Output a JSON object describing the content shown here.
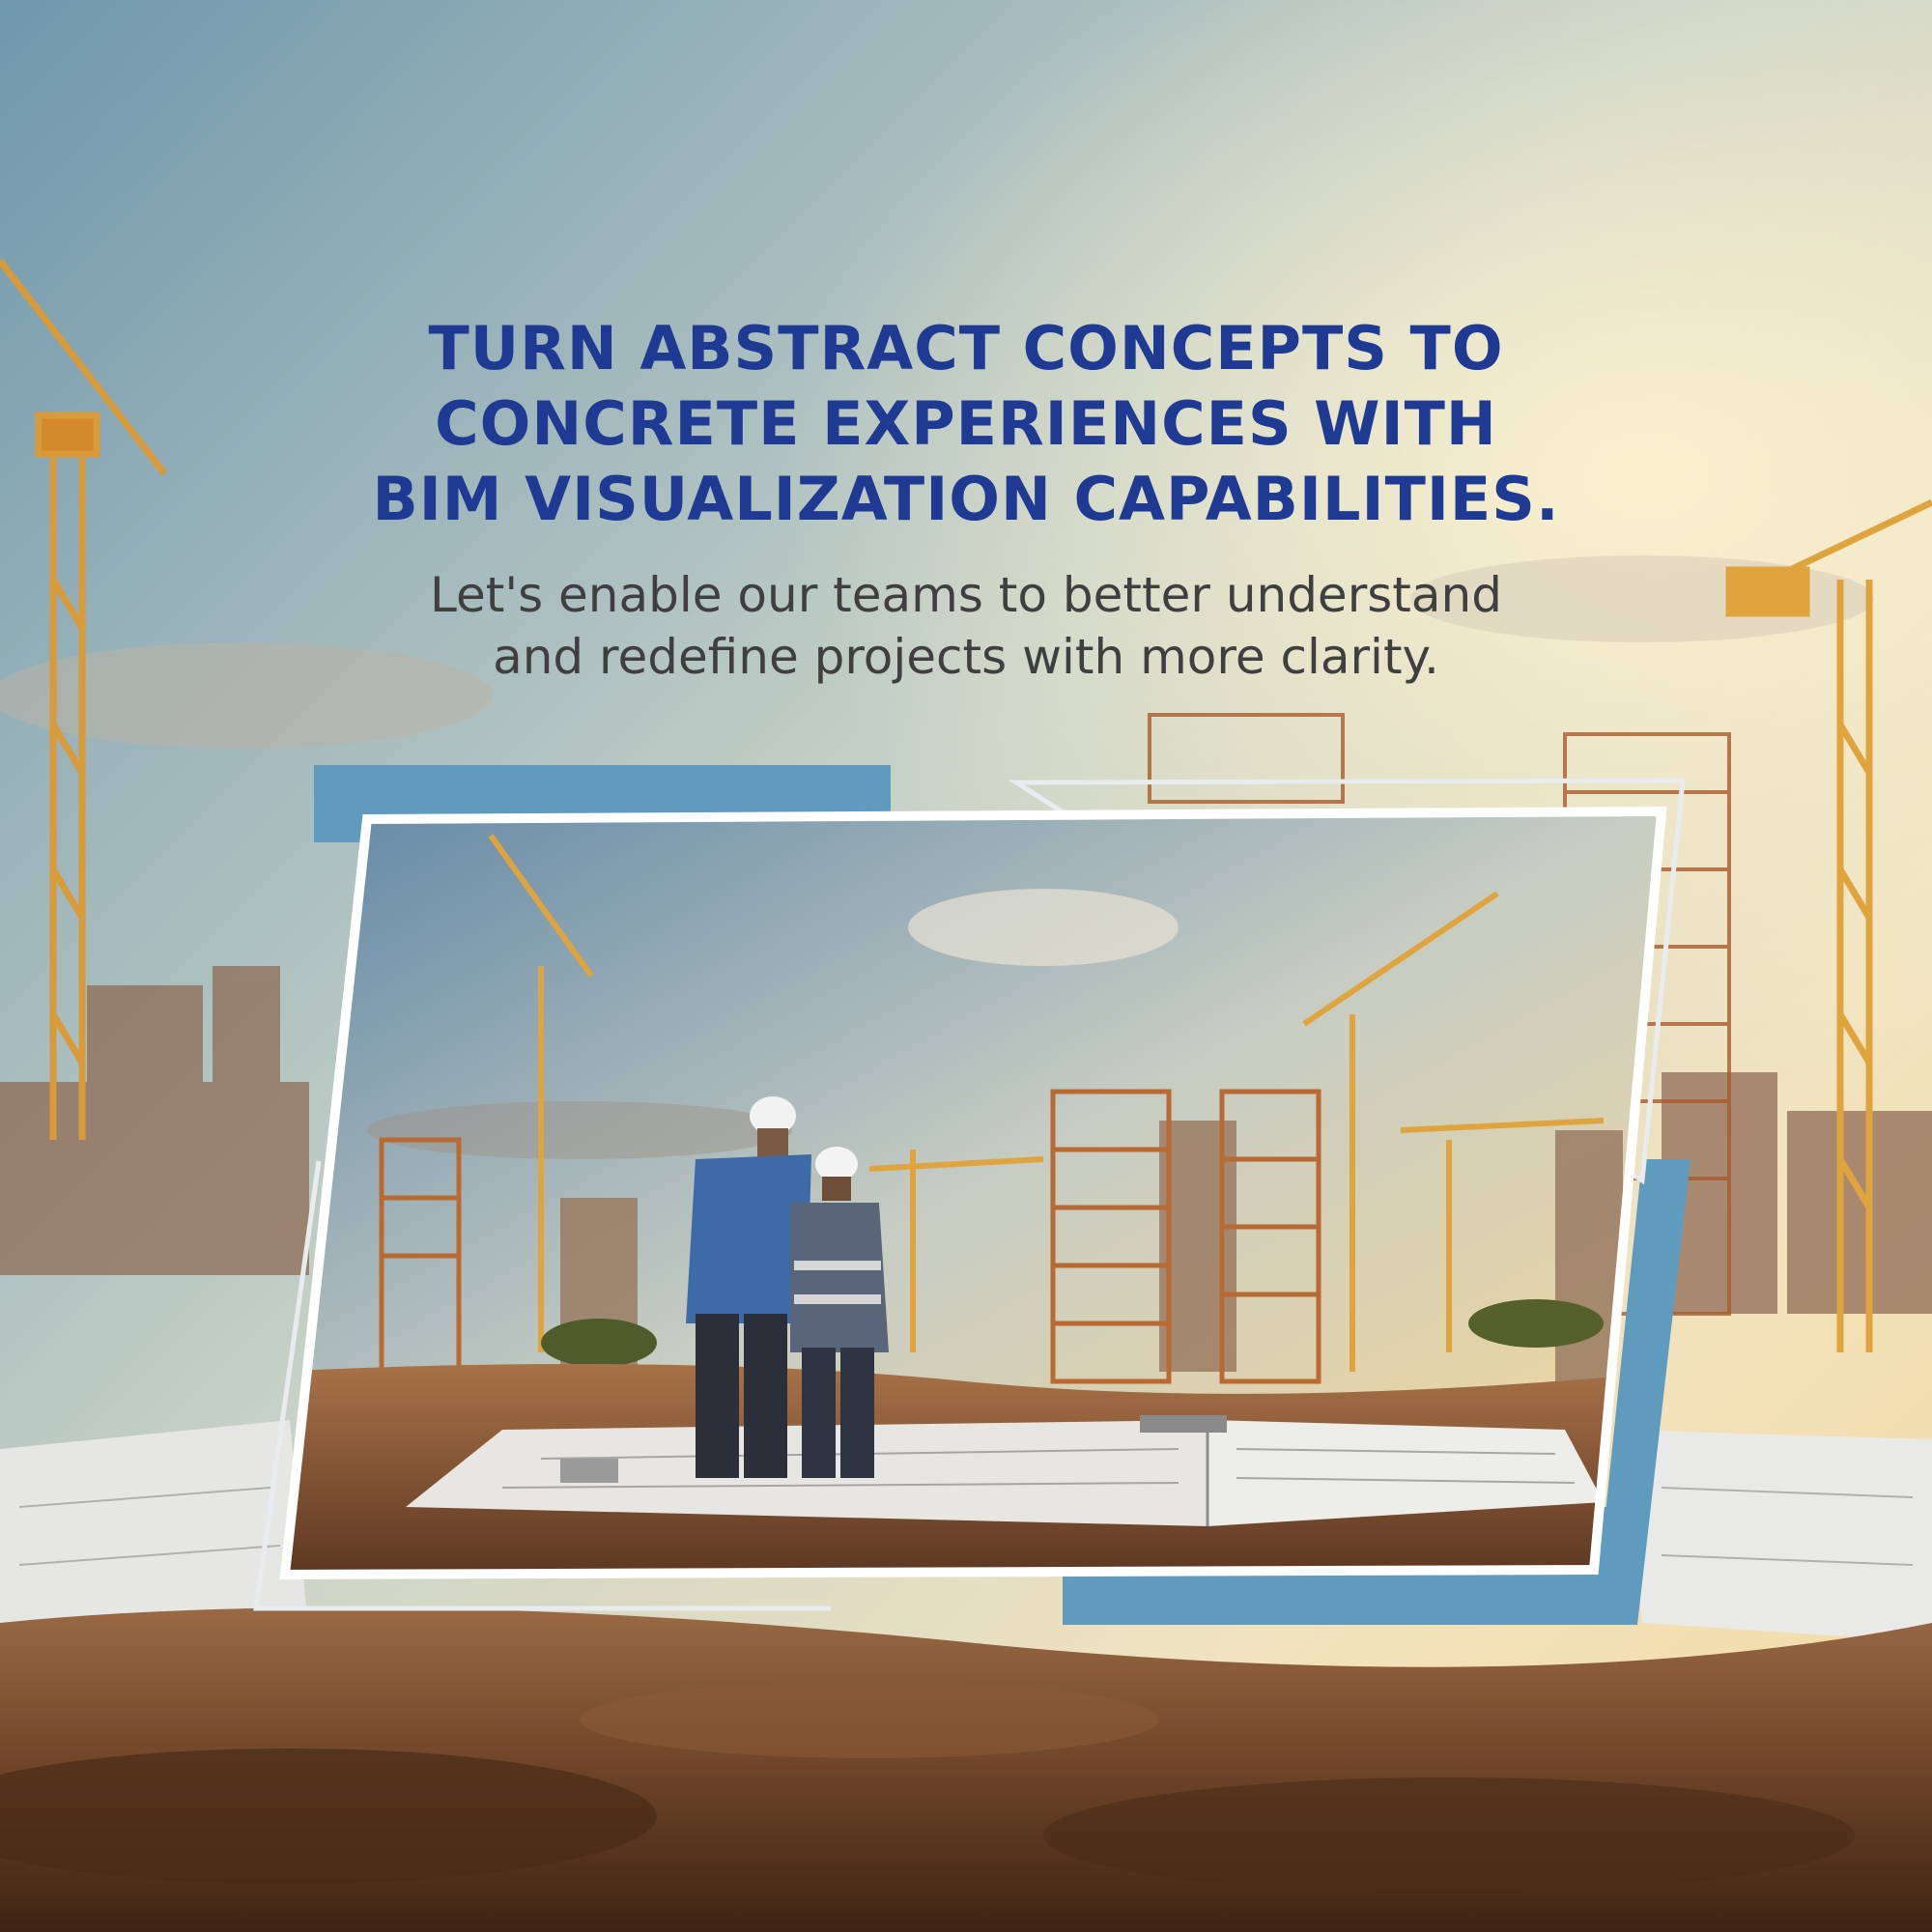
{
  "headline": {
    "lines": [
      "TURN ABSTRACT CONCEPTS TO",
      "CONCRETE EXPERIENCES WITH",
      "BIM VISUALIZATION CAPABILITIES."
    ]
  },
  "subheadline": {
    "lines": [
      "Let's enable our teams to better understand",
      "and redefine projects with more clarity."
    ]
  },
  "colors": {
    "headline": "#1f3a93",
    "subheadline": "#3f3f3f",
    "accent_blue": "#5e9bbd",
    "frame": "#ffffff"
  },
  "icons": [
    "tower-crane-icon",
    "engineer-figure-icon",
    "blueprint-book-icon"
  ]
}
